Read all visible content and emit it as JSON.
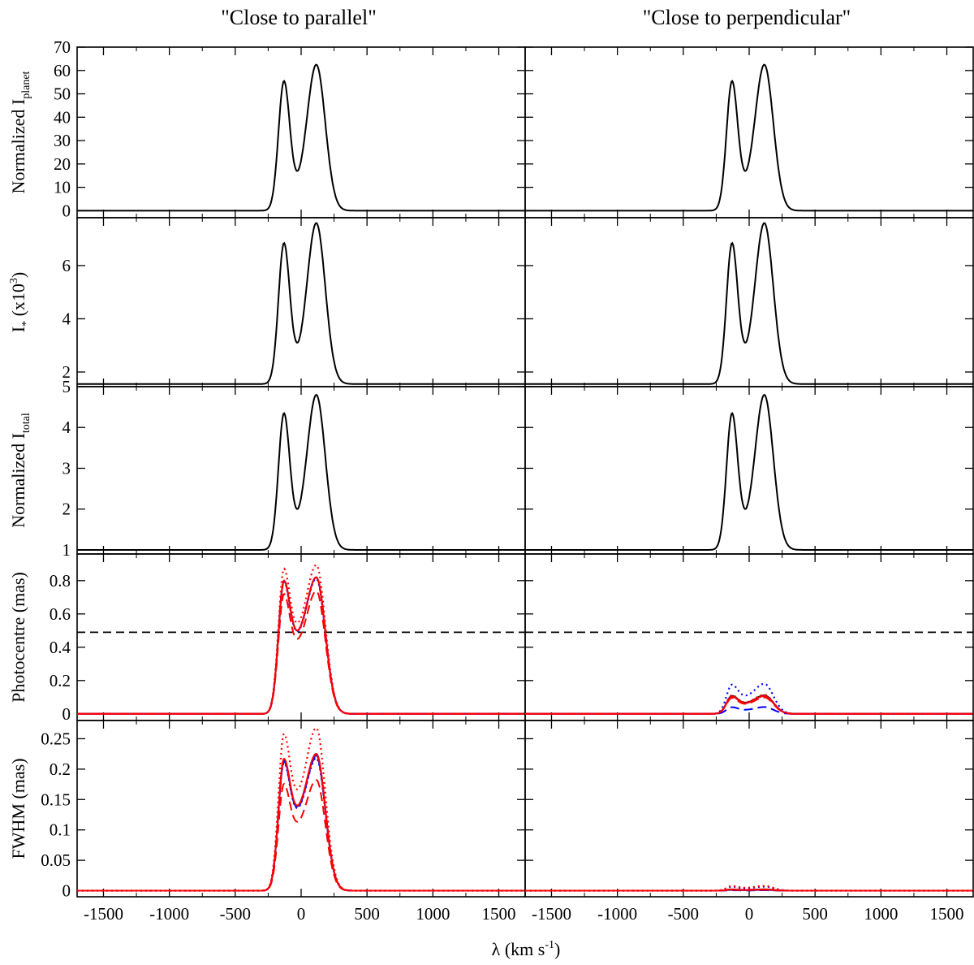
{
  "chart_data": {
    "type": "line",
    "column_titles": [
      "\"Close to parallel\"",
      "\"Close to perpendicular\""
    ],
    "x": {
      "label_main": "λ (km s",
      "label_sup": "-1",
      "label_close": ")",
      "range": [
        -1700,
        1700
      ],
      "ticks": [
        -1500,
        -1000,
        -500,
        0,
        500,
        1000,
        1500
      ],
      "tick_labels": [
        "-1500",
        "-1000",
        "-500",
        "0",
        "500",
        "1000",
        "1500"
      ]
    },
    "panels": [
      {
        "id": "iplanet",
        "ylabel_main": "Normalized I",
        "ylabel_sub": "planet",
        "ylim": [
          -3,
          70
        ],
        "yticks": [
          0,
          10,
          20,
          30,
          40,
          50,
          60,
          70
        ],
        "ytick_labels": [
          "0",
          "10",
          "20",
          "30",
          "40",
          "50",
          "60",
          "70"
        ],
        "profile": {
          "base": 0,
          "peak1": 55.5,
          "peak2": 62.5,
          "dip": 17,
          "dip_v": -30
        },
        "series": [
          {
            "name": "I_planet",
            "color": "#000000",
            "style": "solid",
            "scale": [
              1,
              1
            ]
          }
        ]
      },
      {
        "id": "istar",
        "ylabel_main": "I",
        "ylabel_sub": "*",
        "ylabel_rest": " (x10",
        "ylabel_sup": "3",
        "ylabel_close": ")",
        "ylim": [
          1.45,
          7.8
        ],
        "yticks": [
          2,
          4,
          6
        ],
        "ytick_labels": [
          "2",
          "4",
          "6"
        ],
        "profile": {
          "base": 1.55,
          "peak1": 6.85,
          "peak2": 7.6,
          "dip": 3.1,
          "dip_v": -30
        },
        "series": [
          {
            "name": "I_star",
            "color": "#000000",
            "style": "solid",
            "scale": [
              1,
              1
            ]
          }
        ]
      },
      {
        "id": "itotal",
        "ylabel_main": "Normalized I",
        "ylabel_sub": "total",
        "ylim": [
          0.9,
          5.0
        ],
        "yticks": [
          1,
          2,
          3,
          4,
          5
        ],
        "ytick_labels": [
          "1",
          "2",
          "3",
          "4",
          "5"
        ],
        "profile": {
          "base": 1.0,
          "peak1": 4.35,
          "peak2": 4.8,
          "dip": 2.0,
          "dip_v": -30
        },
        "series": [
          {
            "name": "I_total",
            "color": "#000000",
            "style": "solid",
            "scale": [
              1,
              1
            ]
          }
        ]
      },
      {
        "id": "photocentre",
        "ylabel_main": "Photocentre (mas)",
        "ylim": [
          -0.04,
          0.96
        ],
        "yticks": [
          0,
          0.2,
          0.4,
          0.6,
          0.8
        ],
        "ytick_labels": [
          "0",
          "0.2",
          "0.4",
          "0.6",
          "0.8"
        ],
        "hline": {
          "y": 0.49,
          "color": "#000000",
          "style": "dashed"
        },
        "profile": {
          "base": 0,
          "peak1": 0.8,
          "peak2": 0.82,
          "dip": 0.5,
          "dip_v": -30
        },
        "series": [
          {
            "name": "model",
            "color": "#000000",
            "style": "solid",
            "scale": [
              1,
              0.135
            ]
          },
          {
            "name": "blue solid",
            "color": "#0000ff",
            "style": "solid",
            "scale": [
              1,
              0.13
            ]
          },
          {
            "name": "blue dashed",
            "color": "#0000ff",
            "style": "dashed",
            "scale": [
              1,
              0.05
            ]
          },
          {
            "name": "blue dotted",
            "color": "#0000ff",
            "style": "dotted",
            "scale": [
              0.99,
              0.22
            ]
          },
          {
            "name": "red solid",
            "color": "#ff0000",
            "style": "solid",
            "scale": [
              1,
              0.13
            ]
          },
          {
            "name": "red dashed",
            "color": "#ff0000",
            "style": "dashed",
            "scale": [
              0.9,
              0.12
            ]
          },
          {
            "name": "red dotted",
            "color": "#ff0000",
            "style": "dotted",
            "scale": [
              1.09,
              0.14
            ]
          }
        ]
      },
      {
        "id": "fwhm",
        "ylabel_main": "FWHM (mas)",
        "ylim": [
          -0.01,
          0.28
        ],
        "yticks": [
          0,
          0.05,
          0.1,
          0.15,
          0.2,
          0.25
        ],
        "ytick_labels": [
          "0",
          "0.05",
          "0.1",
          "0.15",
          "0.2",
          "0.25"
        ],
        "profile": {
          "base": 0,
          "peak1": 0.217,
          "peak2": 0.225,
          "dip": 0.14,
          "dip_v": -30
        },
        "series": [
          {
            "name": "model",
            "color": "#000000",
            "style": "solid",
            "scale": [
              1,
              0.01
            ]
          },
          {
            "name": "blue solid",
            "color": "#0000ff",
            "style": "solid",
            "scale": [
              0.99,
              0.006
            ]
          },
          {
            "name": "blue dashed",
            "color": "#0000ff",
            "style": "dashed",
            "scale": [
              0.98,
              0.003
            ]
          },
          {
            "name": "blue dotted",
            "color": "#0000ff",
            "style": "dotted",
            "scale": [
              0.97,
              0.03
            ]
          },
          {
            "name": "red solid",
            "color": "#ff0000",
            "style": "solid",
            "scale": [
              1,
              0.009
            ]
          },
          {
            "name": "red dashed",
            "color": "#ff0000",
            "style": "dashed",
            "scale": [
              0.81,
              0.006
            ]
          },
          {
            "name": "red dotted",
            "color": "#ff0000",
            "style": "dotted",
            "scale": [
              1.19,
              0.035
            ]
          }
        ]
      }
    ]
  }
}
